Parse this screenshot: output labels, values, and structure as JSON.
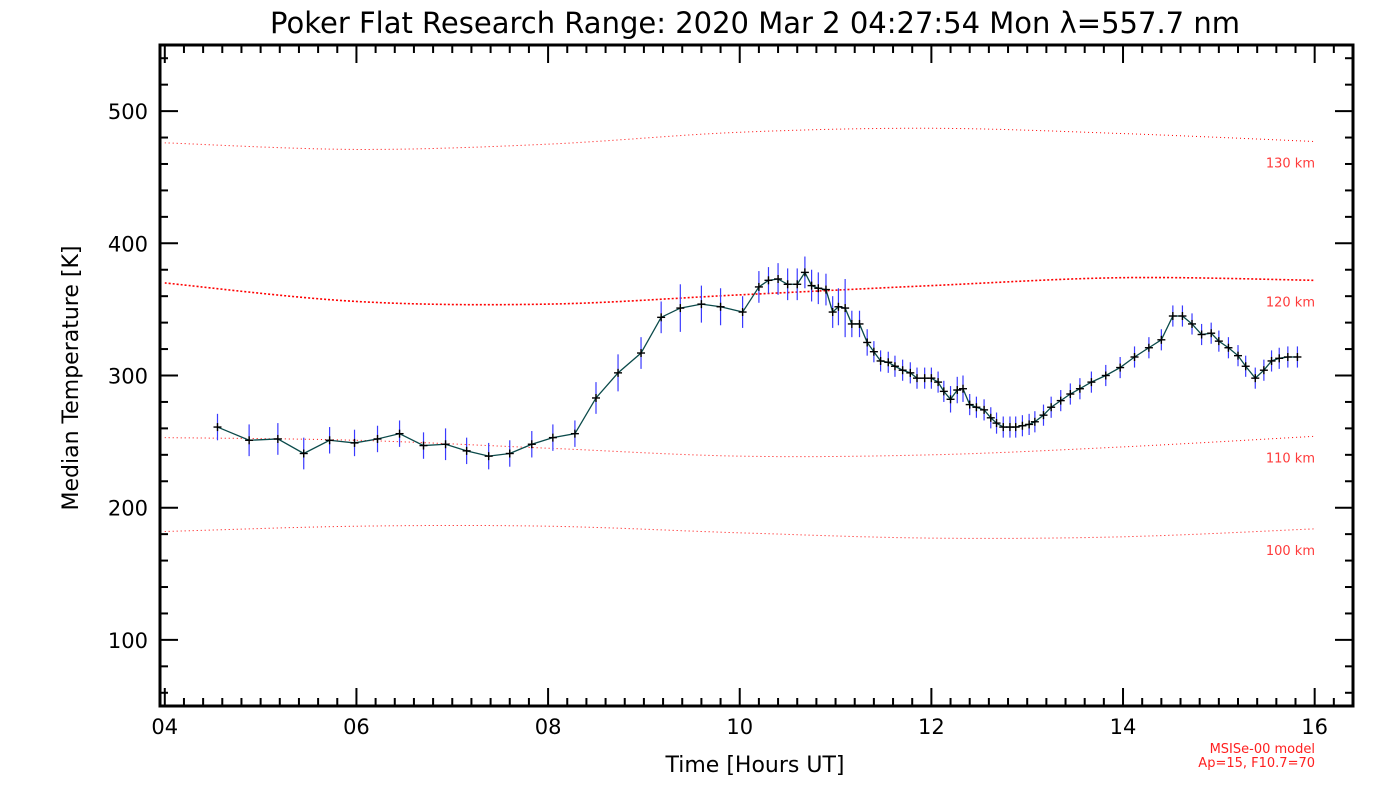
{
  "colors": {
    "axis": "#000000",
    "model_line": "#ff0000",
    "model_label": "#ff3b3b",
    "error_bar": "#3a3aff",
    "series_line": "#0a4a4a",
    "marker": "#000000",
    "background": "#ffffff"
  },
  "chart_data": {
    "type": "line",
    "title": "Poker Flat Research Range: 2020 Mar  2 04:27:54 Mon λ=557.7 nm",
    "xlabel": "Time [Hours UT]",
    "ylabel": "Median Temperature [K]",
    "xlim": [
      3.95,
      16.4
    ],
    "ylim": [
      50,
      550
    ],
    "x_ticks": [
      4,
      6,
      8,
      10,
      12,
      14,
      16
    ],
    "x_tick_labels": [
      "04",
      "06",
      "08",
      "10",
      "12",
      "14",
      "16"
    ],
    "y_ticks": [
      100,
      200,
      300,
      400,
      500
    ],
    "y_tick_labels": [
      "100",
      "200",
      "300",
      "400",
      "500"
    ],
    "grid": false,
    "model_lines": [
      {
        "name": "130 km",
        "x": [
          4,
          6,
          8,
          10,
          12,
          14,
          16
        ],
        "y": [
          476,
          471,
          475,
          484,
          487,
          483,
          477
        ]
      },
      {
        "name": "120 km",
        "x": [
          4,
          6,
          8,
          10,
          12,
          14,
          16
        ],
        "y": [
          370,
          356,
          354,
          361,
          368,
          374,
          372
        ]
      },
      {
        "name": "110 km",
        "x": [
          4,
          6,
          8,
          10,
          12,
          14,
          16
        ],
        "y": [
          253,
          251,
          245,
          239,
          240,
          246,
          254
        ]
      },
      {
        "name": "100 km",
        "x": [
          4,
          6,
          8,
          10,
          12,
          14,
          16
        ],
        "y": [
          182,
          186,
          186,
          181,
          177,
          178,
          184
        ]
      }
    ],
    "series": [
      {
        "name": "",
        "x": [
          4.55,
          4.88,
          5.18,
          5.45,
          5.72,
          5.98,
          6.22,
          6.45,
          6.7,
          6.93,
          7.15,
          7.38,
          7.6,
          7.83,
          8.05,
          8.28,
          8.5,
          8.73,
          8.97,
          9.18,
          9.38,
          9.6,
          9.8,
          10.03,
          10.2,
          10.3,
          10.4,
          10.5,
          10.6,
          10.68,
          10.75,
          10.82,
          10.9,
          10.97,
          11.03,
          11.1,
          11.17,
          11.25,
          11.33,
          11.4,
          11.47,
          11.55,
          11.62,
          11.7,
          11.78,
          11.85,
          11.93,
          12.0,
          12.07,
          12.13,
          12.2,
          12.27,
          12.33,
          12.4,
          12.47,
          12.55,
          12.62,
          12.68,
          12.75,
          12.82,
          12.88,
          12.95,
          13.02,
          13.08,
          13.17,
          13.25,
          13.35,
          13.45,
          13.55,
          13.67,
          13.82,
          13.97,
          14.12,
          14.27,
          14.4,
          14.52,
          14.62,
          14.72,
          14.82,
          14.92,
          15.0,
          15.1,
          15.2,
          15.28,
          15.38,
          15.47,
          15.55,
          15.63,
          15.72,
          15.82
        ],
        "y": [
          261,
          251,
          252,
          241,
          251,
          249,
          252,
          256,
          247,
          248,
          243,
          239,
          241,
          248,
          253,
          256,
          283,
          302,
          317,
          344,
          351,
          354,
          352,
          348,
          367,
          372,
          373,
          369,
          369,
          378,
          368,
          366,
          365,
          348,
          352,
          351,
          339,
          339,
          325,
          318,
          311,
          310,
          307,
          304,
          302,
          298,
          298,
          298,
          295,
          288,
          282,
          289,
          290,
          278,
          276,
          274,
          268,
          264,
          261,
          261,
          261,
          262,
          263,
          265,
          270,
          276,
          281,
          286,
          290,
          295,
          300,
          306,
          314,
          321,
          327,
          345,
          345,
          339,
          331,
          332,
          326,
          321,
          315,
          307,
          298,
          304,
          311,
          313,
          314,
          314
        ],
        "err": [
          10,
          12,
          12,
          12,
          10,
          10,
          10,
          10,
          10,
          12,
          10,
          10,
          10,
          10,
          10,
          10,
          12,
          14,
          12,
          12,
          18,
          14,
          14,
          12,
          12,
          10,
          12,
          12,
          12,
          12,
          12,
          12,
          12,
          12,
          14,
          22,
          10,
          10,
          10,
          8,
          8,
          8,
          8,
          8,
          8,
          8,
          8,
          8,
          8,
          8,
          10,
          10,
          10,
          8,
          8,
          8,
          8,
          8,
          8,
          8,
          8,
          8,
          8,
          8,
          8,
          8,
          8,
          8,
          8,
          8,
          8,
          8,
          8,
          8,
          8,
          8,
          8,
          8,
          8,
          8,
          8,
          8,
          8,
          8,
          8,
          8,
          8,
          8,
          8,
          8
        ]
      }
    ],
    "annotations": [
      "MSISe-00 model",
      "Ap=15, F10.7=70"
    ]
  }
}
